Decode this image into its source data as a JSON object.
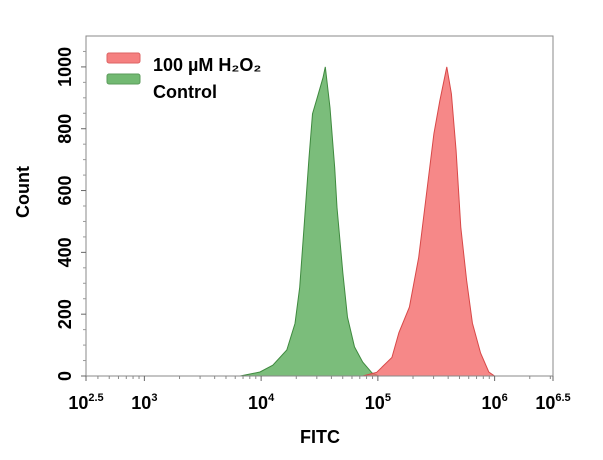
{
  "chart_data": {
    "type": "area",
    "title": "",
    "xlabel": "FITC",
    "ylabel": "Count",
    "xscale": "log",
    "xlim_log10": [
      2.5,
      6.5
    ],
    "ylim": [
      0,
      1100
    ],
    "x_ticks": [
      {
        "base": "10",
        "exp": "2.5",
        "log10": 2.5
      },
      {
        "base": "10",
        "exp": "3",
        "log10": 3
      },
      {
        "base": "10",
        "exp": "4",
        "log10": 4
      },
      {
        "base": "10",
        "exp": "5",
        "log10": 5
      },
      {
        "base": "10",
        "exp": "6",
        "log10": 6
      },
      {
        "base": "10",
        "exp": "6.5",
        "log10": 6.5
      }
    ],
    "y_ticks": [
      "0",
      "200",
      "400",
      "600",
      "800",
      "1000"
    ],
    "grid": false,
    "legend": {
      "placement": "top-left"
    },
    "series": [
      {
        "name": "100 µM H₂O₂",
        "color": "#f46a6a",
        "stroke": "#d84848",
        "log10_x": [
          4.87,
          4.99,
          5.12,
          5.18,
          5.27,
          5.35,
          5.42,
          5.48,
          5.53,
          5.59,
          5.63,
          5.67,
          5.71,
          5.76,
          5.81,
          5.88,
          5.95,
          6.0
        ],
        "y": [
          0,
          12,
          60,
          140,
          223,
          384,
          600,
          784,
          890,
          1000,
          913,
          729,
          481,
          310,
          171,
          74,
          13,
          0
        ]
      },
      {
        "name": "Control",
        "color": "#5aad5a",
        "stroke": "#3f8a3f",
        "log10_x": [
          3.82,
          3.99,
          4.1,
          4.22,
          4.29,
          4.33,
          4.37,
          4.41,
          4.44,
          4.48,
          4.53,
          4.55,
          4.59,
          4.63,
          4.65,
          4.7,
          4.74,
          4.8,
          4.87,
          4.95,
          5.01
        ],
        "y": [
          0,
          13,
          35,
          84,
          170,
          287,
          493,
          706,
          848,
          900,
          965,
          1000,
          868,
          674,
          545,
          332,
          190,
          94,
          45,
          10,
          0
        ]
      }
    ]
  }
}
